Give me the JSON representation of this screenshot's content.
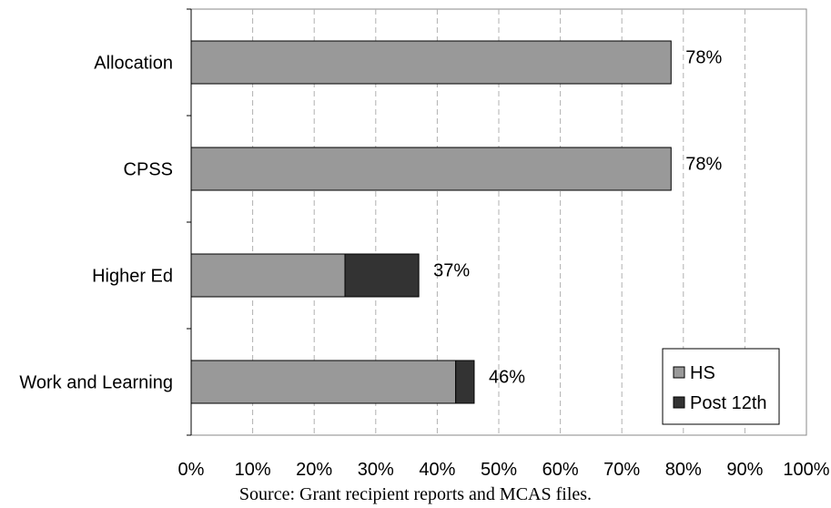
{
  "chart_data": {
    "type": "bar",
    "orientation": "horizontal",
    "stacked": true,
    "categories": [
      "Allocation",
      "CPSS",
      "Higher Ed",
      "Work and Learning"
    ],
    "series": [
      {
        "name": "HS",
        "values": [
          78,
          78,
          25,
          43
        ],
        "color": "#999999"
      },
      {
        "name": "Post 12th",
        "values": [
          0,
          0,
          12,
          3
        ],
        "color": "#333333"
      }
    ],
    "data_labels": [
      "78%",
      "78%",
      "37%",
      "46%"
    ],
    "xlim": [
      0,
      100
    ],
    "x_ticks": [
      "0%",
      "10%",
      "20%",
      "30%",
      "40%",
      "50%",
      "60%",
      "70%",
      "80%",
      "90%",
      "100%"
    ],
    "grid": "vertical dashed",
    "legend_position": "bottom-right"
  },
  "source": "Source: Grant recipient reports and MCAS files."
}
